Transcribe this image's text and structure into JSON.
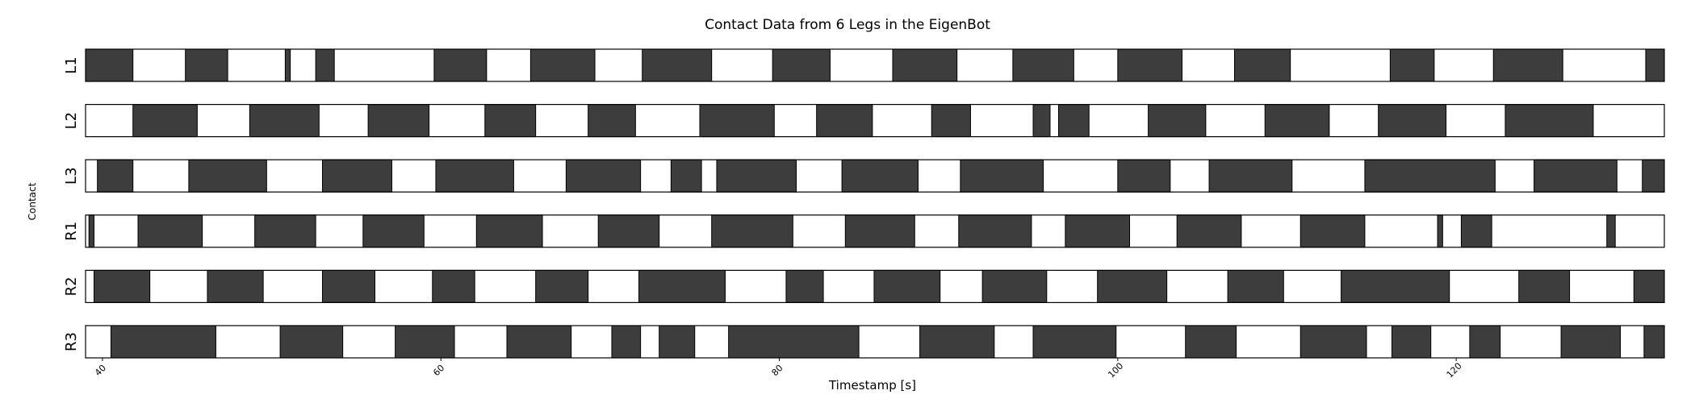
{
  "chart_data": {
    "type": "broken_barh",
    "title": "Contact Data from 6 Legs in the EigenBot",
    "xlabel": "Timestamp [s]",
    "ylabel": "Contact",
    "xlim": [
      39,
      132.3
    ],
    "xticks": [
      40,
      60,
      80,
      100,
      120
    ],
    "contact_color": "#3d3d3d",
    "rows": [
      {
        "name": "L1",
        "contact": [
          [
            39.0,
            41.8
          ],
          [
            44.9,
            47.4
          ],
          [
            50.8,
            51.1
          ],
          [
            52.6,
            53.7
          ],
          [
            59.6,
            62.7
          ],
          [
            65.3,
            69.1
          ],
          [
            71.9,
            76.0
          ],
          [
            79.6,
            83.0
          ],
          [
            86.7,
            90.5
          ],
          [
            93.8,
            97.4
          ],
          [
            100.0,
            103.8
          ],
          [
            106.9,
            110.2
          ],
          [
            116.1,
            118.7
          ],
          [
            122.2,
            126.3
          ],
          [
            131.2,
            132.3
          ]
        ]
      },
      {
        "name": "L2",
        "contact": [
          [
            41.8,
            45.6
          ],
          [
            48.7,
            52.8
          ],
          [
            55.7,
            59.3
          ],
          [
            62.6,
            65.6
          ],
          [
            68.7,
            71.5
          ],
          [
            75.3,
            79.7
          ],
          [
            82.2,
            85.5
          ],
          [
            89.0,
            91.3
          ],
          [
            95.0,
            96.0
          ],
          [
            96.5,
            98.3
          ],
          [
            101.8,
            105.2
          ],
          [
            108.7,
            112.5
          ],
          [
            115.4,
            119.4
          ],
          [
            122.9,
            128.1
          ]
        ]
      },
      {
        "name": "L3",
        "contact": [
          [
            39.7,
            41.8
          ],
          [
            45.1,
            49.7
          ],
          [
            53.0,
            57.1
          ],
          [
            59.7,
            64.3
          ],
          [
            67.4,
            71.8
          ],
          [
            73.6,
            75.4
          ],
          [
            76.3,
            81.0
          ],
          [
            83.7,
            88.2
          ],
          [
            90.7,
            95.6
          ],
          [
            100.0,
            103.1
          ],
          [
            105.4,
            110.3
          ],
          [
            114.6,
            122.3
          ],
          [
            124.6,
            129.5
          ],
          [
            131.0,
            132.3
          ]
        ]
      },
      {
        "name": "R1",
        "contact": [
          [
            39.2,
            39.5
          ],
          [
            42.1,
            45.9
          ],
          [
            49.0,
            52.6
          ],
          [
            55.4,
            59.0
          ],
          [
            62.1,
            66.0
          ],
          [
            69.3,
            72.9
          ],
          [
            76.0,
            80.8
          ],
          [
            83.9,
            88.0
          ],
          [
            90.6,
            94.9
          ],
          [
            96.9,
            100.7
          ],
          [
            103.5,
            107.3
          ],
          [
            110.8,
            114.6
          ],
          [
            118.9,
            119.2
          ],
          [
            120.3,
            122.1
          ],
          [
            128.9,
            129.4
          ]
        ]
      },
      {
        "name": "R2",
        "contact": [
          [
            39.5,
            42.8
          ],
          [
            46.2,
            49.5
          ],
          [
            53.0,
            56.1
          ],
          [
            59.5,
            62.0
          ],
          [
            65.6,
            68.7
          ],
          [
            71.7,
            76.8
          ],
          [
            80.4,
            82.6
          ],
          [
            85.6,
            89.5
          ],
          [
            92.0,
            95.8
          ],
          [
            98.8,
            102.9
          ],
          [
            106.5,
            109.8
          ],
          [
            113.2,
            119.6
          ],
          [
            123.7,
            126.7
          ],
          [
            130.5,
            132.3
          ]
        ]
      },
      {
        "name": "R3",
        "contact": [
          [
            40.5,
            46.7
          ],
          [
            50.5,
            54.2
          ],
          [
            57.3,
            60.8
          ],
          [
            63.9,
            67.7
          ],
          [
            70.1,
            71.8
          ],
          [
            72.9,
            75.0
          ],
          [
            77.0,
            84.7
          ],
          [
            88.3,
            92.7
          ],
          [
            95.0,
            99.9
          ],
          [
            104.0,
            107.0
          ],
          [
            110.8,
            114.7
          ],
          [
            116.2,
            118.5
          ],
          [
            120.8,
            122.6
          ],
          [
            126.2,
            129.7
          ],
          [
            131.1,
            132.3
          ]
        ]
      }
    ]
  }
}
